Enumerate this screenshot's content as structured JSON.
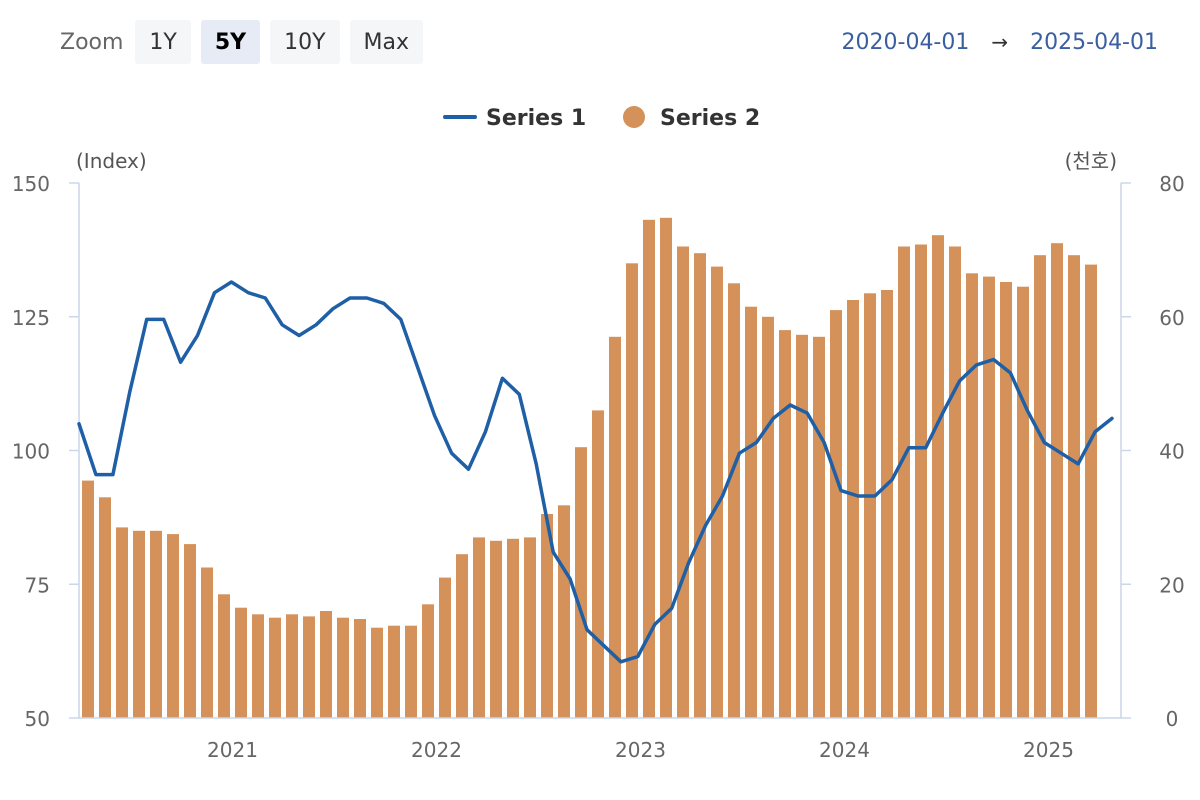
{
  "toolbar": {
    "zoom_label": "Zoom",
    "buttons": [
      {
        "label": "1Y",
        "active": false
      },
      {
        "label": "5Y",
        "active": true
      },
      {
        "label": "10Y",
        "active": false
      },
      {
        "label": "Max",
        "active": false
      }
    ]
  },
  "range": {
    "from": "2020-04-01",
    "arrow": "→",
    "to": "2025-04-01"
  },
  "colors": {
    "series1": "#1f5fa6",
    "series2": "#d4915a",
    "axis": "#ccd6eb",
    "text": "#666666"
  },
  "chart_data": {
    "type": "bar+line",
    "start_date": "2020-04",
    "legend": {
      "placement": "top-center"
    },
    "y_left": {
      "unit_label": "(Index)",
      "min": 50,
      "max": 150,
      "ticks": [
        50,
        75,
        100,
        125,
        150
      ]
    },
    "y_right": {
      "unit_label": "(천호)",
      "min": 0,
      "max": 80,
      "ticks": [
        0,
        20,
        40,
        60,
        80
      ]
    },
    "x_ticks": [
      {
        "label": "2021",
        "date": "2021-01"
      },
      {
        "label": "2022",
        "date": "2022-01"
      },
      {
        "label": "2023",
        "date": "2023-01"
      },
      {
        "label": "2024",
        "date": "2024-01"
      },
      {
        "label": "2025",
        "date": "2025-01"
      }
    ],
    "series": [
      {
        "name": "Series 1",
        "type": "line",
        "axis": "left",
        "values": [
          105,
          95.5,
          95.5,
          111,
          124.5,
          124.5,
          116.5,
          121.5,
          129.5,
          131.5,
          129.5,
          128.5,
          123.5,
          121.5,
          123.5,
          126.5,
          128.5,
          128.5,
          127.5,
          124.5,
          115.5,
          106.5,
          99.5,
          96.5,
          103.5,
          113.5,
          110.5,
          97.5,
          81,
          76,
          66.5,
          63.5,
          60.5,
          61.5,
          67.5,
          70.5,
          79,
          86,
          91.5,
          99.5,
          101.5,
          106,
          108.5,
          107,
          101.5,
          92.5,
          91.5,
          91.5,
          94.5,
          100.5,
          100.5,
          107,
          113,
          116,
          117,
          114.5,
          107.5,
          101.5,
          99.5,
          97.5,
          103.5,
          106
        ]
      },
      {
        "name": "Series 2",
        "type": "bar",
        "axis": "right",
        "values": [
          35.5,
          33,
          28.5,
          28,
          28,
          27.5,
          26,
          22.5,
          18.5,
          16.5,
          15.5,
          15,
          15.5,
          15.2,
          16,
          15,
          14.8,
          13.5,
          13.8,
          13.8,
          17,
          21,
          24.5,
          27,
          26.5,
          26.8,
          27,
          30.5,
          31.8,
          40.5,
          46,
          57,
          68,
          74.5,
          74.8,
          70.5,
          69.5,
          67.5,
          65,
          61.5,
          60,
          58,
          57.3,
          57,
          61,
          62.5,
          63.5,
          64,
          70.5,
          70.8,
          72.2,
          70.5,
          66.5,
          66,
          65.2,
          64.5,
          69.2,
          71,
          69.2,
          67.8
        ]
      }
    ]
  }
}
